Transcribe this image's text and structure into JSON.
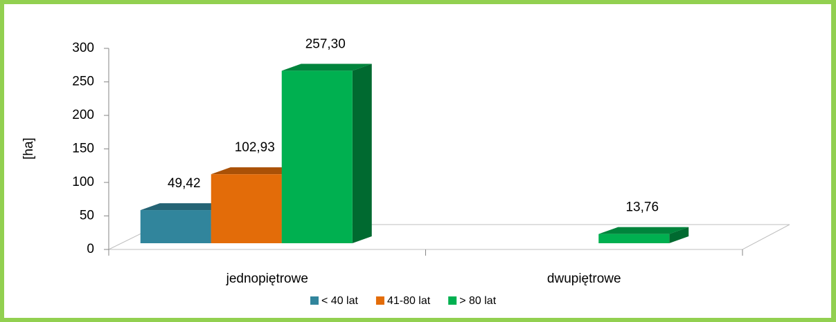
{
  "chart_data": {
    "type": "bar3d",
    "y_label": "[ha]",
    "categories": [
      "jednopiętrowe",
      "dwupiętrowe"
    ],
    "series": [
      {
        "name": "< 40 lat",
        "color": "#31859c",
        "values": [
          49.42,
          null
        ],
        "value_labels": [
          "49,42",
          null
        ]
      },
      {
        "name": "41-80 lat",
        "color": "#e36c09",
        "values": [
          102.93,
          null
        ],
        "value_labels": [
          "102,93",
          null
        ]
      },
      {
        "name": "> 80 lat",
        "color": "#00b050",
        "values": [
          257.3,
          13.76
        ],
        "value_labels": [
          "257,30",
          "13,76"
        ]
      }
    ],
    "ylim": [
      0,
      300
    ],
    "yticks": [
      0,
      50,
      100,
      150,
      200,
      250,
      300
    ],
    "legend": "bottom"
  }
}
